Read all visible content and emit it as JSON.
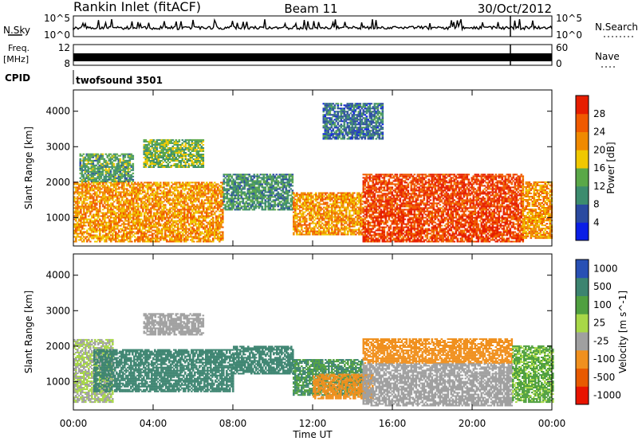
{
  "header": {
    "station": "Rankin Inlet (fitACF)",
    "beam": "Beam 11",
    "date": "30/Oct/2012"
  },
  "noise_panel": {
    "left_label": "N.Sky",
    "right_label": "N.Search",
    "left_ticks": [
      "10^5",
      "10^0"
    ],
    "right_ticks": [
      "10^5",
      "10^0"
    ]
  },
  "freq_panel": {
    "label_line1": "Freq.",
    "label_line2": "[MHz]",
    "left_ticks": [
      "12",
      "8"
    ],
    "right_ticks": [
      "60",
      "0"
    ],
    "right_label": "Nave"
  },
  "cpid_panel": {
    "label": "CPID",
    "value": "twofsound 3501"
  },
  "x_axis": {
    "label": "Time UT",
    "ticks": [
      "00:00",
      "04:00",
      "08:00",
      "12:00",
      "16:00",
      "20:00",
      "00:00"
    ]
  },
  "colors": {
    "power_scale": [
      "#0a1ee6",
      "#2a4aa0",
      "#3c8c6e",
      "#5aa848",
      "#f0c800",
      "#f08a00",
      "#f05a00",
      "#e61e00"
    ],
    "velocity_scale": [
      "#e81400",
      "#e85a00",
      "#f0901e",
      "#a0a0a0",
      "#a8d848",
      "#50a040",
      "#3c8470",
      "#2850b4"
    ]
  },
  "chart_data": [
    {
      "type": "heatmap",
      "panel": "power",
      "ylabel": "Slant Range [km]",
      "yticks": [
        "1000",
        "2000",
        "3000",
        "4000"
      ],
      "ylim": [
        200,
        4600
      ],
      "xlim_hours": [
        0,
        24
      ],
      "colorbar_label": "Power [dB]",
      "colorbar_ticks": [
        "4",
        "8",
        "12",
        "16",
        "20",
        "24",
        "28"
      ],
      "colorbar_range": [
        0,
        32
      ],
      "regions": [
        {
          "t0": 0.0,
          "t1": 7.5,
          "r0": 300,
          "r1": 2000,
          "v": 22
        },
        {
          "t0": 0.3,
          "t1": 3.0,
          "r0": 2000,
          "r1": 2800,
          "v": 12
        },
        {
          "t0": 7.5,
          "t1": 11.0,
          "r0": 1200,
          "r1": 2200,
          "v": 11
        },
        {
          "t0": 11.0,
          "t1": 14.5,
          "r0": 500,
          "r1": 1700,
          "v": 22
        },
        {
          "t0": 14.5,
          "t1": 22.5,
          "r0": 300,
          "r1": 2200,
          "v": 28
        },
        {
          "t0": 22.5,
          "t1": 24.0,
          "r0": 400,
          "r1": 2000,
          "v": 22
        },
        {
          "t0": 3.5,
          "t1": 6.5,
          "r0": 2400,
          "r1": 3200,
          "v": 14
        },
        {
          "t0": 12.5,
          "t1": 15.5,
          "r0": 3200,
          "r1": 4200,
          "v": 8
        }
      ]
    },
    {
      "type": "heatmap",
      "panel": "velocity",
      "ylabel": "Slant Range [km]",
      "yticks": [
        "1000",
        "2000",
        "3000",
        "4000"
      ],
      "ylim": [
        200,
        4600
      ],
      "xlim_hours": [
        0,
        24
      ],
      "colorbar_label": "Velocity [m s^-1]",
      "colorbar_ticks": [
        "1000",
        "500",
        "100",
        "25",
        "-25",
        "-100",
        "-500",
        "-1000"
      ],
      "regions": [
        {
          "t0": 0.0,
          "t1": 2.0,
          "r0": 400,
          "r1": 2200,
          "v": 25
        },
        {
          "t0": 1.0,
          "t1": 8.0,
          "r0": 700,
          "r1": 1900,
          "v": 500
        },
        {
          "t0": 8.0,
          "t1": 11.0,
          "r0": 1200,
          "r1": 2000,
          "v": 500
        },
        {
          "t0": 11.0,
          "t1": 14.5,
          "r0": 600,
          "r1": 1600,
          "v": 300
        },
        {
          "t0": 12.0,
          "t1": 15.0,
          "r0": 500,
          "r1": 1200,
          "v": -150
        },
        {
          "t0": 14.5,
          "t1": 22.0,
          "r0": 1500,
          "r1": 2200,
          "v": -150
        },
        {
          "t0": 14.5,
          "t1": 22.0,
          "r0": 300,
          "r1": 1500,
          "v": 0
        },
        {
          "t0": 22.0,
          "t1": 24.0,
          "r0": 400,
          "r1": 2000,
          "v": 80
        },
        {
          "t0": 3.5,
          "t1": 6.5,
          "r0": 2300,
          "r1": 2900,
          "v": 0
        }
      ]
    }
  ]
}
